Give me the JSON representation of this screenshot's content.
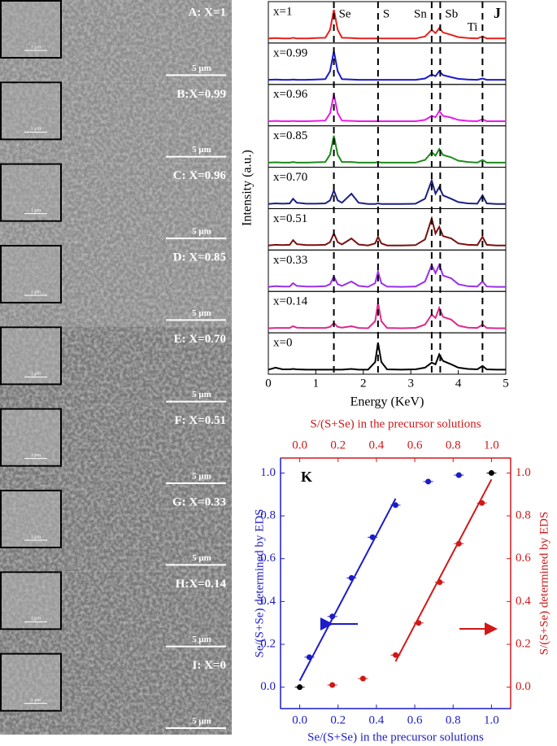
{
  "sem_panels": [
    {
      "label": "A: X=1",
      "inset_scale": "1 μm",
      "scale": "5 μm"
    },
    {
      "label": "B:X=0.99",
      "inset_scale": "1 μm",
      "scale": "5 μm"
    },
    {
      "label": "C: X=0.96",
      "inset_scale": "1 μm",
      "scale": "5 μm"
    },
    {
      "label": "D: X=0.85",
      "inset_scale": "1 μm",
      "scale": "5 μm"
    },
    {
      "label": "E: X=0.70",
      "inset_scale": "1 μm",
      "scale": "5 μm"
    },
    {
      "label": "F: X=0.51",
      "inset_scale": "1 μm",
      "scale": "5 μm"
    },
    {
      "label": "G: X=0.33",
      "inset_scale": "1 μm",
      "scale": "5 μm"
    },
    {
      "label": "H:X=0.14",
      "inset_scale": "1 μm",
      "scale": "5 μm"
    },
    {
      "label": "I: X=0",
      "inset_scale": "1 μm",
      "scale": "5 μm"
    }
  ],
  "chart_data": [
    {
      "type": "line",
      "panel_label": "J",
      "ylabel": "Intensity (a.u.)",
      "xlabel": "Energy (KeV)",
      "xlim": [
        0,
        5
      ],
      "xticks": [
        0,
        1,
        2,
        3,
        4,
        5
      ],
      "ylim": [
        0,
        1
      ],
      "peak_lines": [
        1.38,
        2.31,
        3.44,
        3.62,
        4.51
      ],
      "peak_labels": [
        "Se",
        "S",
        "Sn",
        "Sb",
        "Ti"
      ],
      "x": [
        0,
        0.15,
        0.3,
        0.45,
        0.52,
        0.6,
        0.8,
        1.0,
        1.2,
        1.3,
        1.38,
        1.46,
        1.55,
        1.75,
        1.9,
        2.1,
        2.25,
        2.31,
        2.38,
        2.5,
        2.8,
        3.1,
        3.3,
        3.44,
        3.52,
        3.6,
        3.68,
        3.85,
        4.0,
        4.2,
        4.4,
        4.51,
        4.6,
        4.8,
        5.0
      ],
      "series": [
        {
          "name": "x=1",
          "color": "#e8201c",
          "values": [
            0.04,
            0.05,
            0.04,
            0.04,
            0.06,
            0.04,
            0.04,
            0.05,
            0.06,
            0.3,
            0.9,
            0.3,
            0.06,
            0.05,
            0.04,
            0.04,
            0.04,
            0.04,
            0.04,
            0.04,
            0.04,
            0.04,
            0.1,
            0.3,
            0.2,
            0.35,
            0.22,
            0.15,
            0.08,
            0.05,
            0.04,
            0.1,
            0.04,
            0.04,
            0.04
          ]
        },
        {
          "name": "x=0.99",
          "color": "#1c1cc8",
          "values": [
            0.04,
            0.05,
            0.04,
            0.04,
            0.05,
            0.04,
            0.04,
            0.05,
            0.06,
            0.3,
            0.9,
            0.3,
            0.06,
            0.05,
            0.04,
            0.04,
            0.04,
            0.04,
            0.04,
            0.04,
            0.04,
            0.04,
            0.08,
            0.2,
            0.15,
            0.3,
            0.18,
            0.12,
            0.07,
            0.05,
            0.04,
            0.08,
            0.04,
            0.04,
            0.04
          ]
        },
        {
          "name": "x=0.96",
          "color": "#e81ce8",
          "values": [
            0.04,
            0.05,
            0.04,
            0.04,
            0.05,
            0.04,
            0.04,
            0.05,
            0.06,
            0.28,
            0.85,
            0.28,
            0.06,
            0.05,
            0.04,
            0.04,
            0.04,
            0.04,
            0.04,
            0.04,
            0.04,
            0.04,
            0.08,
            0.2,
            0.16,
            0.35,
            0.2,
            0.15,
            0.08,
            0.05,
            0.04,
            0.1,
            0.04,
            0.04,
            0.04
          ]
        },
        {
          "name": "x=0.85",
          "color": "#1c8c1c",
          "values": [
            0.04,
            0.05,
            0.04,
            0.04,
            0.06,
            0.04,
            0.04,
            0.05,
            0.06,
            0.28,
            0.85,
            0.28,
            0.06,
            0.06,
            0.04,
            0.04,
            0.04,
            0.06,
            0.04,
            0.04,
            0.04,
            0.04,
            0.12,
            0.35,
            0.25,
            0.45,
            0.27,
            0.2,
            0.1,
            0.06,
            0.04,
            0.12,
            0.04,
            0.04,
            0.04
          ]
        },
        {
          "name": "x=0.70",
          "color": "#1c2080",
          "values": [
            0.04,
            0.06,
            0.05,
            0.06,
            0.2,
            0.08,
            0.05,
            0.05,
            0.06,
            0.15,
            0.45,
            0.15,
            0.08,
            0.35,
            0.08,
            0.04,
            0.04,
            0.06,
            0.04,
            0.04,
            0.04,
            0.05,
            0.2,
            0.75,
            0.35,
            0.55,
            0.3,
            0.2,
            0.1,
            0.06,
            0.05,
            0.3,
            0.06,
            0.04,
            0.04
          ]
        },
        {
          "name": "x=0.51",
          "color": "#7a1010",
          "values": [
            0.04,
            0.06,
            0.05,
            0.06,
            0.2,
            0.08,
            0.05,
            0.05,
            0.06,
            0.14,
            0.4,
            0.14,
            0.07,
            0.25,
            0.07,
            0.04,
            0.1,
            0.3,
            0.1,
            0.04,
            0.04,
            0.05,
            0.22,
            0.85,
            0.4,
            0.6,
            0.32,
            0.25,
            0.1,
            0.06,
            0.05,
            0.3,
            0.06,
            0.04,
            0.04
          ]
        },
        {
          "name": "x=0.33",
          "color": "#9a30e8",
          "values": [
            0.04,
            0.06,
            0.05,
            0.05,
            0.15,
            0.07,
            0.05,
            0.05,
            0.06,
            0.12,
            0.35,
            0.12,
            0.07,
            0.2,
            0.07,
            0.04,
            0.15,
            0.5,
            0.15,
            0.05,
            0.04,
            0.05,
            0.2,
            0.7,
            0.45,
            0.7,
            0.38,
            0.3,
            0.12,
            0.06,
            0.05,
            0.2,
            0.05,
            0.04,
            0.04
          ]
        },
        {
          "name": "x=0.14",
          "color": "#e0288c",
          "values": [
            0.04,
            0.05,
            0.05,
            0.05,
            0.1,
            0.06,
            0.05,
            0.05,
            0.05,
            0.08,
            0.2,
            0.08,
            0.06,
            0.1,
            0.05,
            0.04,
            0.25,
            0.8,
            0.25,
            0.05,
            0.04,
            0.05,
            0.15,
            0.45,
            0.35,
            0.65,
            0.38,
            0.3,
            0.12,
            0.06,
            0.05,
            0.15,
            0.05,
            0.04,
            0.04
          ]
        },
        {
          "name": "x=0",
          "color": "#000000",
          "values": [
            0.04,
            0.1,
            0.05,
            0.05,
            0.06,
            0.05,
            0.04,
            0.04,
            0.04,
            0.04,
            0.04,
            0.04,
            0.04,
            0.06,
            0.04,
            0.04,
            0.27,
            0.85,
            0.27,
            0.05,
            0.04,
            0.05,
            0.1,
            0.25,
            0.2,
            0.5,
            0.3,
            0.2,
            0.1,
            0.06,
            0.05,
            0.15,
            0.05,
            0.04,
            0.04
          ]
        }
      ]
    },
    {
      "type": "scatter",
      "panel_label": "K",
      "xlabel": "Se/(S+Se) in the precursor solutions",
      "x2label": "S/(S+Se) in the precursor solutions",
      "ylabel": "Se/(S+Se) determined by EDS",
      "y2label": "S/(S+Se) determined by EDS",
      "xlim": [
        -0.1,
        1.1
      ],
      "x2lim": [
        -0.1,
        1.1
      ],
      "ylim": [
        -0.1,
        1.07
      ],
      "y2lim": [
        -0.1,
        1.07
      ],
      "xticks": [
        {
          "value": 0,
          "label": "0.0"
        },
        {
          "value": 0.2,
          "label": "0.2"
        },
        {
          "value": 0.4,
          "label": "0.4"
        },
        {
          "value": 0.6,
          "label": "0.6"
        },
        {
          "value": 0.8,
          "label": "0.8"
        },
        {
          "value": 1,
          "label": "1.0"
        }
      ],
      "x2ticks": [
        {
          "value": 0,
          "label": "0.0"
        },
        {
          "value": 0.2,
          "label": "0.2"
        },
        {
          "value": 0.4,
          "label": "0.4"
        },
        {
          "value": 0.6,
          "label": "0.6"
        },
        {
          "value": 0.8,
          "label": "0.8"
        },
        {
          "value": 1,
          "label": "1.0"
        }
      ],
      "yticks": [
        {
          "value": 0,
          "label": "0.0"
        },
        {
          "value": 0.2,
          "label": "0.2"
        },
        {
          "value": 0.4,
          "label": "0.4"
        },
        {
          "value": 0.6,
          "label": "0.6"
        },
        {
          "value": 0.8,
          "label": "0.8"
        },
        {
          "value": 1,
          "label": "1.0"
        }
      ],
      "y2ticks": [
        {
          "value": 0,
          "label": "0.0"
        },
        {
          "value": 0.2,
          "label": "0.2"
        },
        {
          "value": 0.4,
          "label": "0.4"
        },
        {
          "value": 0.6,
          "label": "0.6"
        },
        {
          "value": 0.8,
          "label": "0.8"
        },
        {
          "value": 1,
          "label": "1.0"
        }
      ],
      "series": [
        {
          "color": "#1c1cc8",
          "x": [
            0.05,
            0.17,
            0.27,
            0.38,
            0.5,
            0.67,
            0.83
          ],
          "values": [
            0.14,
            0.33,
            0.51,
            0.7,
            0.85,
            0.96,
            0.99
          ]
        },
        {
          "color": "#d01818",
          "axis": "y2",
          "x": [
            0.17,
            0.33,
            0.5,
            0.62,
            0.73,
            0.83,
            0.95
          ],
          "values": [
            0.01,
            0.04,
            0.15,
            0.3,
            0.49,
            0.67,
            0.86
          ]
        },
        {
          "color": "#000000",
          "x": [
            0,
            1
          ],
          "values": [
            0,
            1
          ]
        }
      ],
      "fits": [
        {
          "color": "#1c1cc8",
          "x": [
            0,
            0.5
          ],
          "values": [
            0.03,
            0.88
          ]
        },
        {
          "color": "#d01818",
          "axis": "y2",
          "x": [
            0.5,
            1
          ],
          "values": [
            0.12,
            0.97
          ]
        }
      ]
    }
  ]
}
